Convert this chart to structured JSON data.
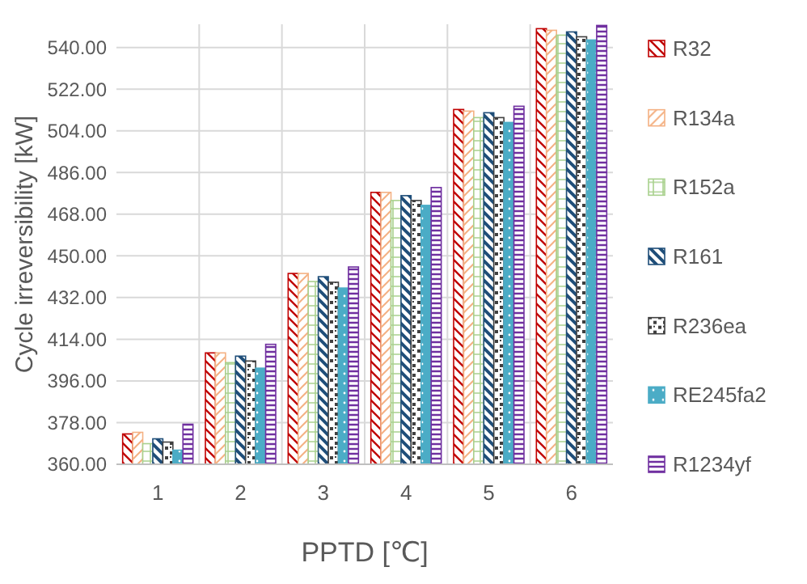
{
  "chart_data": {
    "type": "bar",
    "xlabel": "PPTD [℃]",
    "ylabel": "Cycle irreversibility  [kW]",
    "categories": [
      "1",
      "2",
      "3",
      "4",
      "5",
      "6"
    ],
    "series": [
      {
        "name": "R32",
        "color": "#c00000",
        "values": [
          373.1,
          408.1,
          442.4,
          477.4,
          513.2,
          548.1
        ]
      },
      {
        "name": "R134a",
        "color": "#f4b183",
        "values": [
          373.8,
          408.1,
          442.4,
          477.4,
          512.5,
          547.4
        ]
      },
      {
        "name": "R152a",
        "color": "#a9d18e",
        "values": [
          368.9,
          403.9,
          438.9,
          473.9,
          509.7,
          545.3
        ]
      },
      {
        "name": "R161",
        "color": "#1f4e79",
        "values": [
          371,
          406.7,
          441,
          476,
          511.8,
          546.7
        ]
      },
      {
        "name": "R236ea",
        "color": "#404040",
        "values": [
          369.6,
          404.6,
          438.6,
          473.9,
          509.7,
          544.6
        ]
      },
      {
        "name": "RE245fa2",
        "color": "#4bacc6",
        "values": [
          366.1,
          401.5,
          436.1,
          471.8,
          507.6,
          543.2
        ]
      },
      {
        "name": "R1234yf",
        "color": "#7030a0",
        "values": [
          377.3,
          411.8,
          445.2,
          479.5,
          514.6,
          549.5
        ]
      }
    ],
    "ylim": [
      360,
      550
    ],
    "yticks": [
      {
        "value": 360,
        "label": "360.00"
      },
      {
        "value": 378,
        "label": "378.00"
      },
      {
        "value": 396,
        "label": "396.00"
      },
      {
        "value": 414,
        "label": "414.00"
      },
      {
        "value": 432,
        "label": "432.00"
      },
      {
        "value": 450,
        "label": "450.00"
      },
      {
        "value": 468,
        "label": "468.00"
      },
      {
        "value": 486,
        "label": "486.00"
      },
      {
        "value": 504,
        "label": "504.00"
      },
      {
        "value": 522,
        "label": "522.00"
      },
      {
        "value": 540,
        "label": "540.00"
      }
    ],
    "grid": true,
    "legend": "right"
  }
}
